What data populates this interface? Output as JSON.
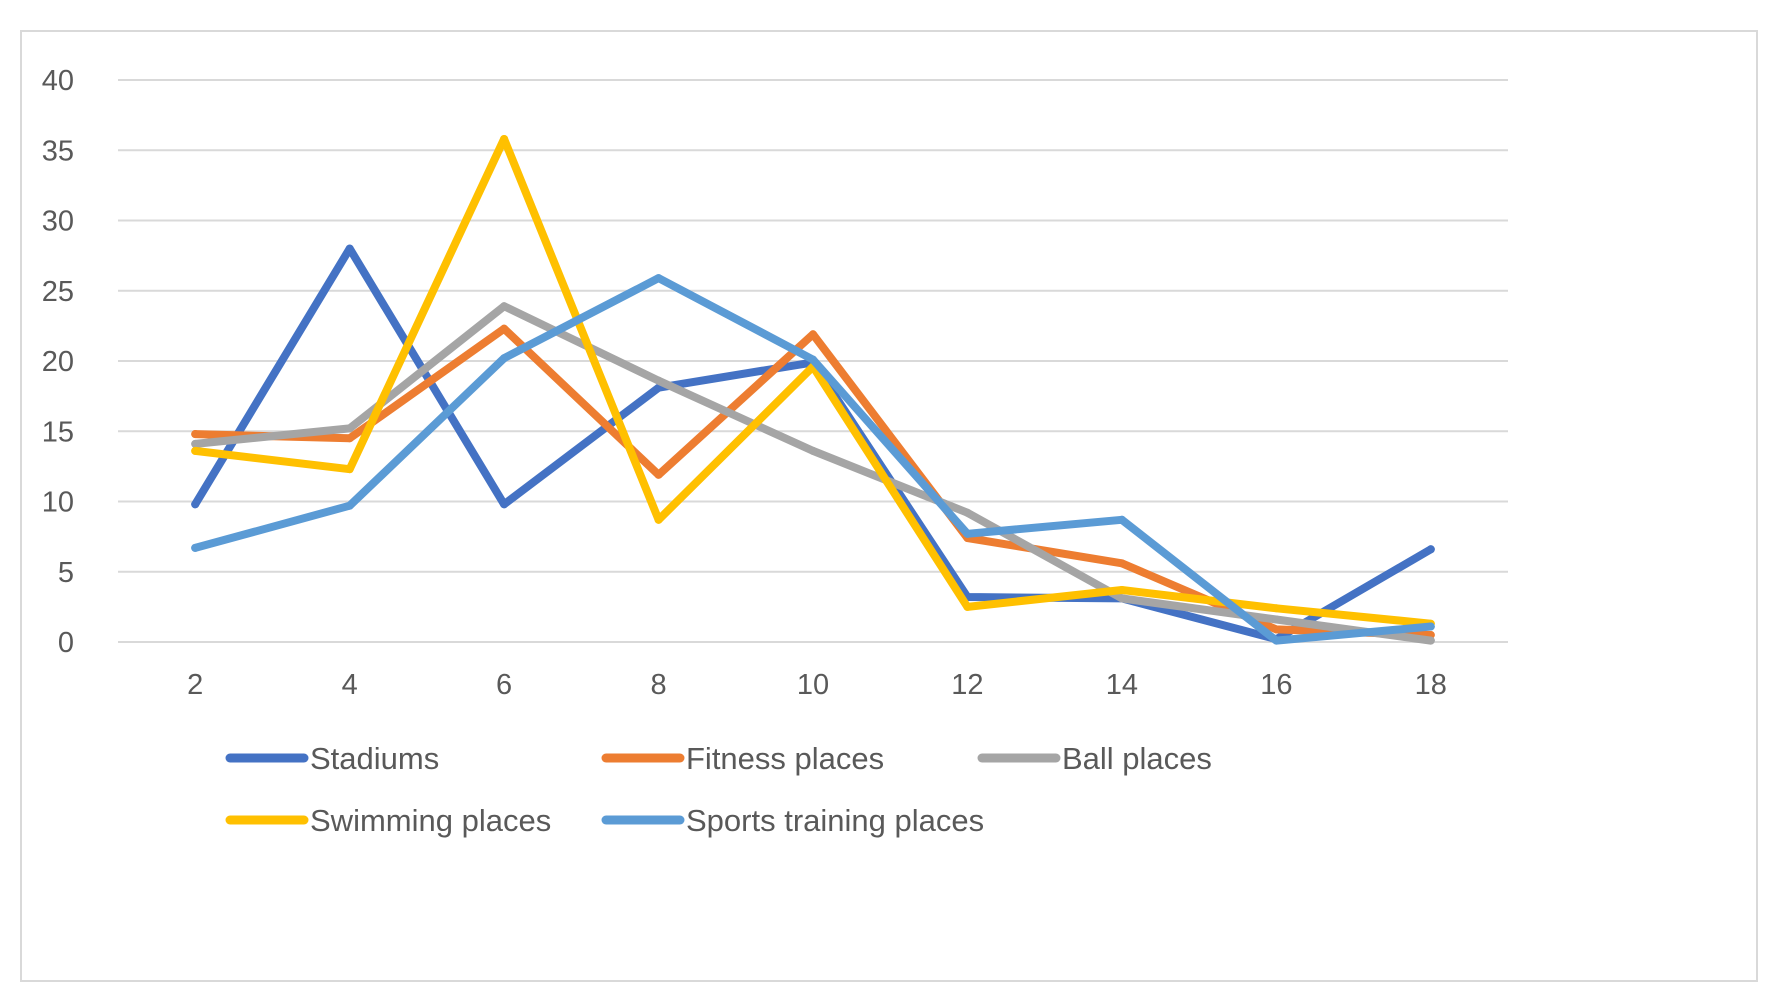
{
  "chart_data": {
    "type": "line",
    "title": "",
    "xlabel": "",
    "ylabel": "",
    "x": [
      2,
      4,
      6,
      8,
      10,
      12,
      14,
      16,
      18
    ],
    "x_tick_labels": [
      "2",
      "4",
      "6",
      "8",
      "10",
      "12",
      "14",
      "16",
      "18"
    ],
    "ylim": [
      0,
      40
    ],
    "y_ticks": [
      0,
      5,
      10,
      15,
      20,
      25,
      30,
      35,
      40
    ],
    "y_tick_labels": [
      "0",
      "5",
      "10",
      "15",
      "20",
      "25",
      "30",
      "35",
      "40"
    ],
    "grid": "horizontal",
    "legend_position": "bottom",
    "series": [
      {
        "name": "Stadiums",
        "color": "#4472C4",
        "values": [
          9.8,
          28.0,
          9.8,
          18.1,
          19.9,
          3.2,
          3.1,
          0.2,
          6.6
        ]
      },
      {
        "name": "Fitness places",
        "color": "#ED7D31",
        "values": [
          14.8,
          14.5,
          22.3,
          11.9,
          21.9,
          7.4,
          5.6,
          0.9,
          0.5
        ]
      },
      {
        "name": "Ball places",
        "color": "#A5A5A5",
        "values": [
          14.1,
          15.2,
          23.9,
          18.6,
          13.6,
          9.2,
          3.1,
          1.6,
          0.1
        ]
      },
      {
        "name": "Swimming places",
        "color": "#FFC000",
        "values": [
          13.6,
          12.3,
          35.8,
          8.7,
          19.6,
          2.5,
          3.7,
          2.4,
          1.3
        ]
      },
      {
        "name": "Sports training places",
        "color": "#5B9BD5",
        "values": [
          6.7,
          9.7,
          20.2,
          25.9,
          20.1,
          7.7,
          8.7,
          0.1,
          1.1
        ]
      }
    ]
  }
}
